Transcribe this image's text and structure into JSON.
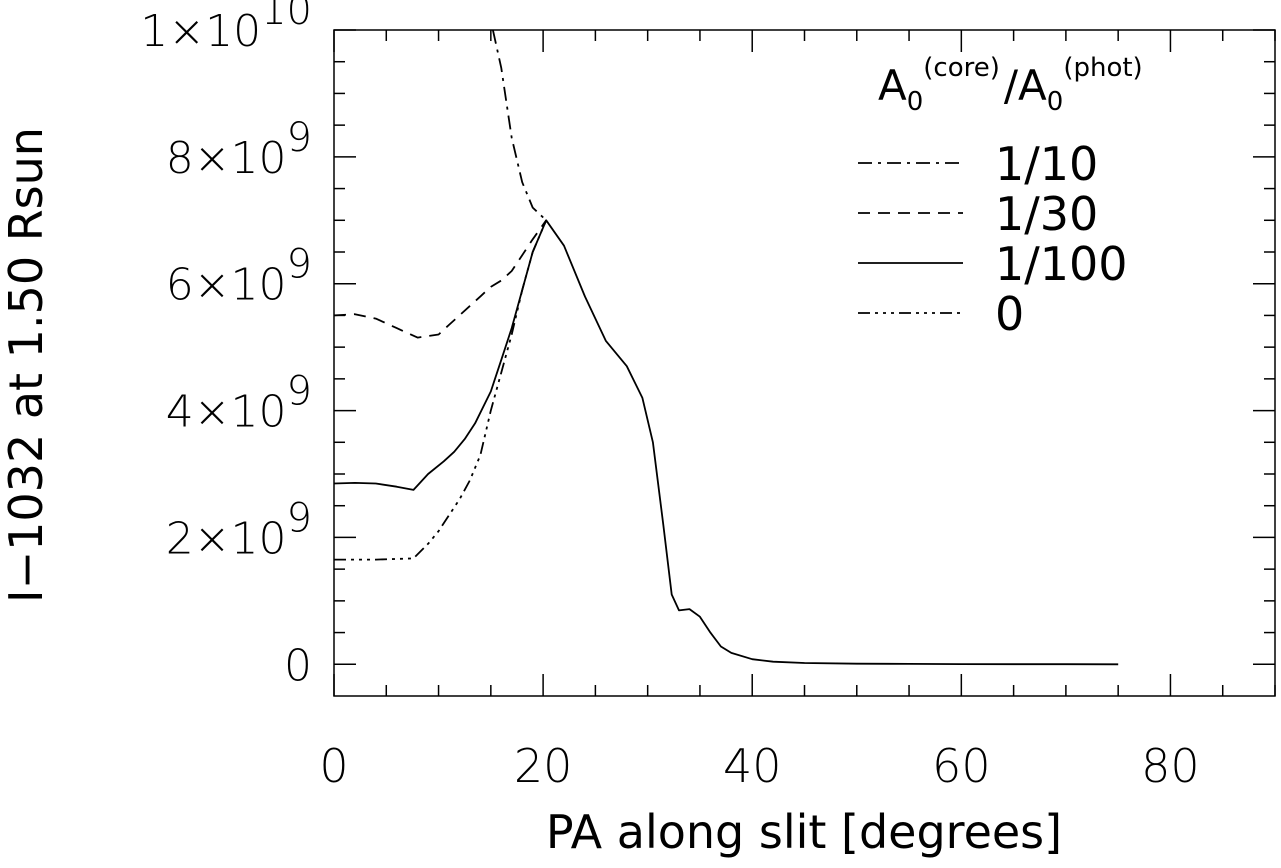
{
  "chart_data": {
    "type": "line",
    "xlabel": "PA along slit [degrees]",
    "ylabel": "I−1032   at 1.50 Rsun",
    "xlim": [
      0,
      90
    ],
    "ylim": [
      -500000000.0,
      10000000000.0
    ],
    "grid": false,
    "legend_position": "top-right",
    "x_ticks": [
      {
        "value": 0,
        "label": "0"
      },
      {
        "value": 20,
        "label": "20"
      },
      {
        "value": 40,
        "label": "40"
      },
      {
        "value": 60,
        "label": "60"
      },
      {
        "value": 80,
        "label": "80"
      }
    ],
    "y_ticks": [
      {
        "value": 0,
        "label": "0"
      },
      {
        "value": 2000000000.0,
        "mantissa": "2×10",
        "exponent": "9"
      },
      {
        "value": 4000000000.0,
        "mantissa": "4×10",
        "exponent": "9"
      },
      {
        "value": 6000000000.0,
        "mantissa": "6×10",
        "exponent": "9"
      },
      {
        "value": 8000000000.0,
        "mantissa": "8×10",
        "exponent": "9"
      },
      {
        "value": 10000000000.0,
        "mantissa": "1×10",
        "exponent": "10"
      }
    ],
    "legend": {
      "title_parts": {
        "a1": "A",
        "s1": "0",
        "p1": "(core)",
        "slash": "/",
        "a2": "A",
        "s2": "0",
        "p2": "(phot)"
      }
    },
    "series": [
      {
        "name": "1/10",
        "dash": "14,6,3,6",
        "x": [
          15.2,
          16,
          17,
          18,
          19,
          20.3
        ],
        "y": [
          10000000000.0,
          9400000000.0,
          8300000000.0,
          7600000000.0,
          7200000000.0,
          7000000000.0
        ]
      },
      {
        "name": "1/30",
        "dash": "12,8",
        "x": [
          0,
          2,
          4,
          6,
          8,
          10,
          11,
          12,
          13,
          14,
          15,
          16,
          17,
          18,
          19,
          20.3
        ],
        "y": [
          5500000000.0,
          5520000000.0,
          5450000000.0,
          5300000000.0,
          5150000000.0,
          5200000000.0,
          5350000000.0,
          5500000000.0,
          5650000000.0,
          5800000000.0,
          5950000000.0,
          6050000000.0,
          6200000000.0,
          6450000000.0,
          6700000000.0,
          7000000000.0
        ]
      },
      {
        "name": "1/100",
        "dash": "",
        "x": [
          0,
          2,
          4,
          6,
          7.6,
          9,
          10.5,
          11.5,
          12.5,
          13.5,
          15,
          16,
          17,
          18,
          19,
          20.3,
          22,
          24,
          26,
          28,
          29.5,
          30.5,
          31.5,
          32.3,
          33,
          34,
          35,
          36,
          37,
          38,
          40,
          42,
          45,
          50,
          55,
          60,
          65,
          70,
          75
        ],
        "y": [
          2850000000.0,
          2860000000.0,
          2850000000.0,
          2800000000.0,
          2750000000.0,
          3000000000.0,
          3200000000.0,
          3350000000.0,
          3550000000.0,
          3800000000.0,
          4300000000.0,
          4800000000.0,
          5300000000.0,
          5900000000.0,
          6500000000.0,
          7000000000.0,
          6600000000.0,
          5800000000.0,
          5100000000.0,
          4700000000.0,
          4200000000.0,
          3500000000.0,
          2200000000.0,
          1100000000.0,
          850000000.0,
          870000000.0,
          750000000.0,
          500000000.0,
          280000000.0,
          180000000.0,
          80000000.0,
          40000000.0,
          20000000.0,
          10000000.0,
          6000000.0,
          3000000.0,
          1500000.0,
          1000000.0,
          500000.0
        ]
      },
      {
        "name": "0",
        "dash": "12,5,3,5,3,5,3,5",
        "x": [
          0,
          4,
          7.6,
          9,
          10,
          11,
          12,
          13,
          14,
          15,
          16,
          17,
          18,
          19,
          20.3
        ],
        "y": [
          1650000000.0,
          1650000000.0,
          1670000000.0,
          1900000000.0,
          2100000000.0,
          2350000000.0,
          2600000000.0,
          2900000000.0,
          3300000000.0,
          4000000000.0,
          4600000000.0,
          5200000000.0,
          5900000000.0,
          6500000000.0,
          7000000000.0
        ]
      }
    ]
  }
}
